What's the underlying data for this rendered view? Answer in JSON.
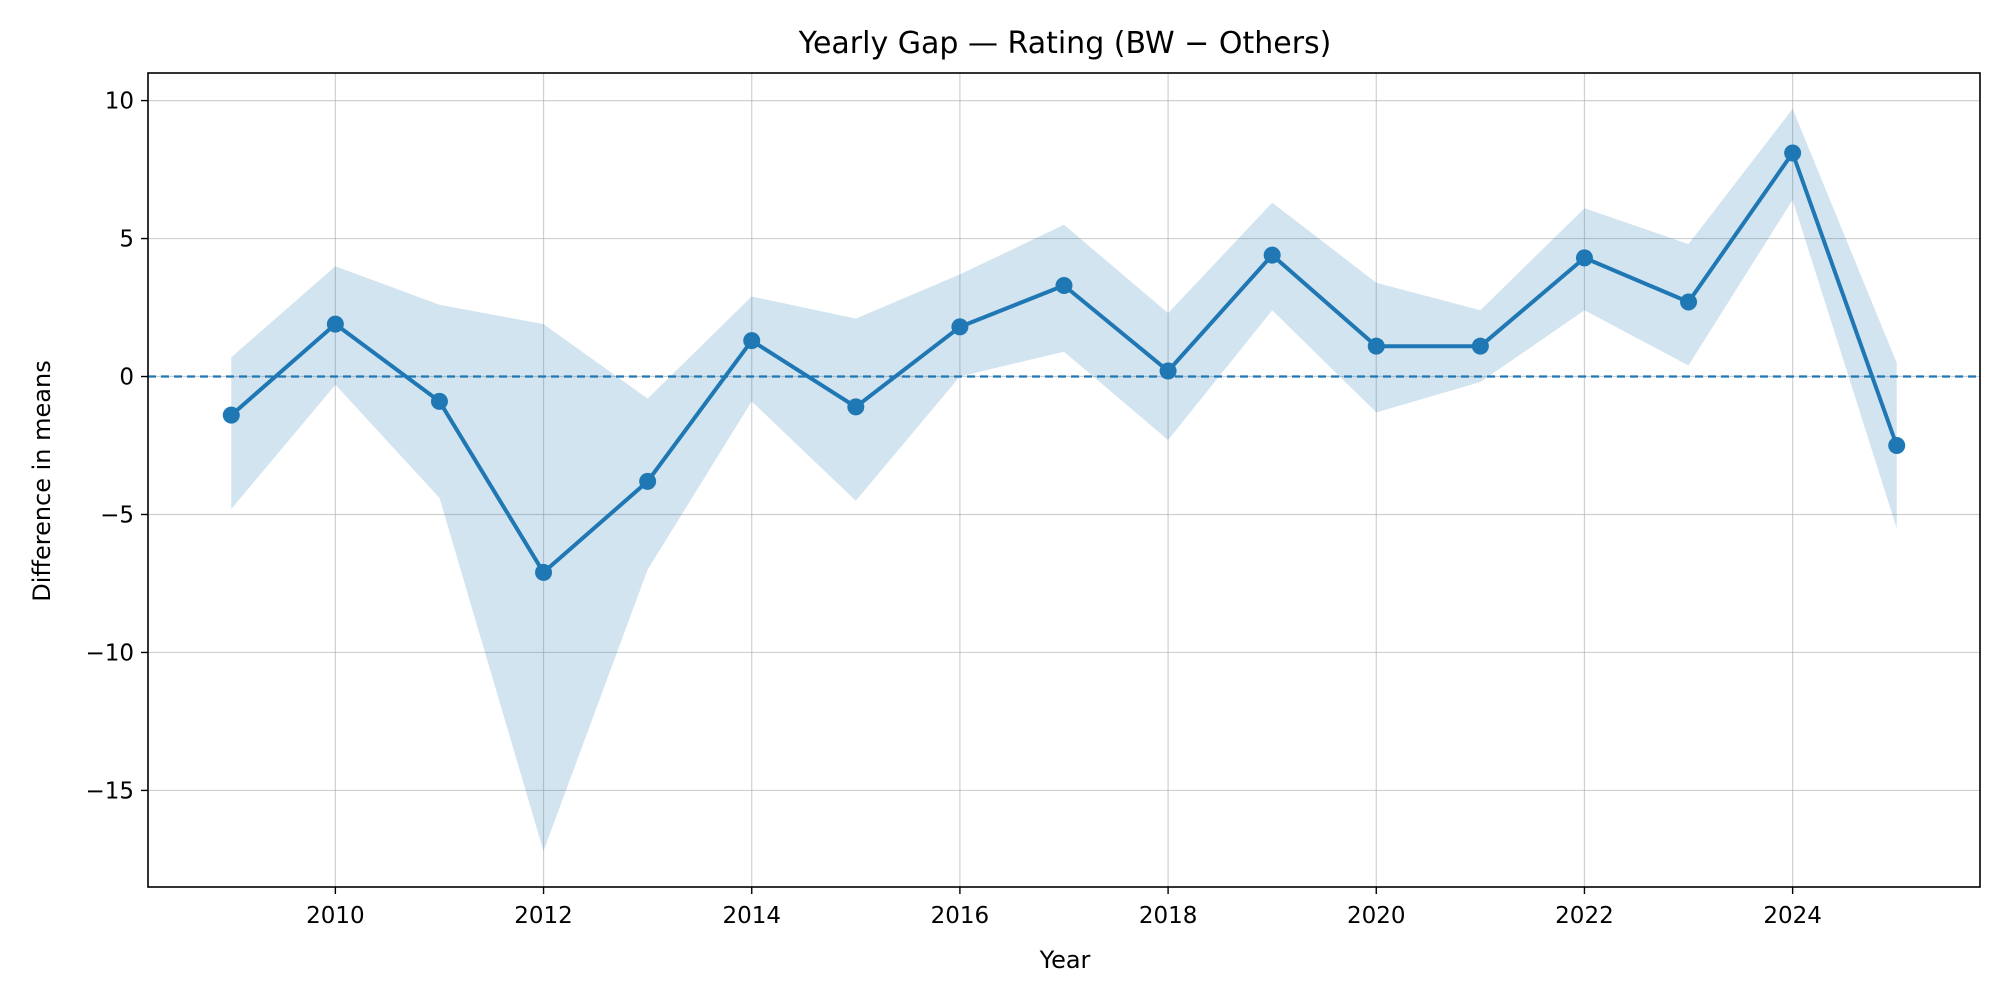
{
  "chart_data": {
    "type": "line",
    "title": "Yearly Gap — Rating (BW − Others)",
    "xlabel": "Year",
    "ylabel": "Difference in means",
    "xlim": [
      2008.2,
      2025.8
    ],
    "ylim": [
      -18.5,
      11
    ],
    "x_ticks": [
      2010,
      2012,
      2014,
      2016,
      2018,
      2020,
      2022,
      2024
    ],
    "x_tick_labels": [
      "2010",
      "2012",
      "2014",
      "2016",
      "2018",
      "2020",
      "2022",
      "2024"
    ],
    "y_ticks": [
      10,
      5,
      0,
      -5,
      -10,
      -15
    ],
    "y_tick_labels": [
      "10",
      "5",
      "0",
      "−5",
      "−10",
      "−15"
    ],
    "grid": true,
    "reference_line": {
      "y": 0,
      "style": "dashed"
    },
    "series": [
      {
        "x": [
          2009,
          2010,
          2011,
          2012,
          2013,
          2014,
          2015,
          2016,
          2017,
          2018,
          2019,
          2020,
          2021,
          2022,
          2023,
          2024,
          2025
        ],
        "values": [
          -1.4,
          1.9,
          -0.9,
          -7.1,
          -3.8,
          1.3,
          -1.1,
          1.8,
          3.3,
          0.2,
          4.4,
          1.1,
          1.1,
          4.3,
          2.7,
          8.1,
          -2.5
        ],
        "lower": [
          -4.8,
          -0.3,
          -4.4,
          -17.2,
          -7.0,
          -0.9,
          -4.5,
          0.0,
          0.9,
          -2.3,
          2.4,
          -1.3,
          -0.2,
          2.4,
          0.4,
          6.4,
          -5.5
        ],
        "upper": [
          0.7,
          4.0,
          2.6,
          1.9,
          -0.8,
          2.9,
          2.1,
          3.7,
          5.5,
          2.3,
          6.3,
          3.4,
          2.4,
          6.1,
          4.8,
          9.7,
          0.5
        ]
      }
    ],
    "colors": {
      "line": "#1f77b4",
      "band": "#1f77b4",
      "grid": "#b0b0b0",
      "axes": "#000000"
    }
  }
}
